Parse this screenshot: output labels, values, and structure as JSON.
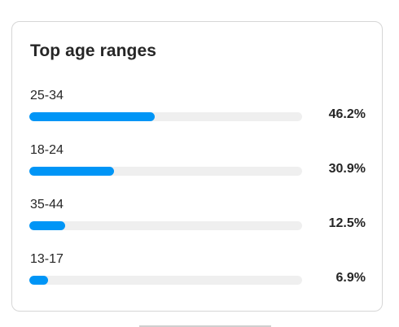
{
  "card": {
    "title": "Top age ranges"
  },
  "accent_color": "#0095f6",
  "track_color": "#efefef",
  "age_ranges": [
    {
      "label": "25-34",
      "percent_text": "46.2%",
      "fill_fraction": 0.46
    },
    {
      "label": "18-24",
      "percent_text": "30.9%",
      "fill_fraction": 0.31
    },
    {
      "label": "35-44",
      "percent_text": "12.5%",
      "fill_fraction": 0.13
    },
    {
      "label": "13-17",
      "percent_text": "6.9%",
      "fill_fraction": 0.07
    }
  ]
}
